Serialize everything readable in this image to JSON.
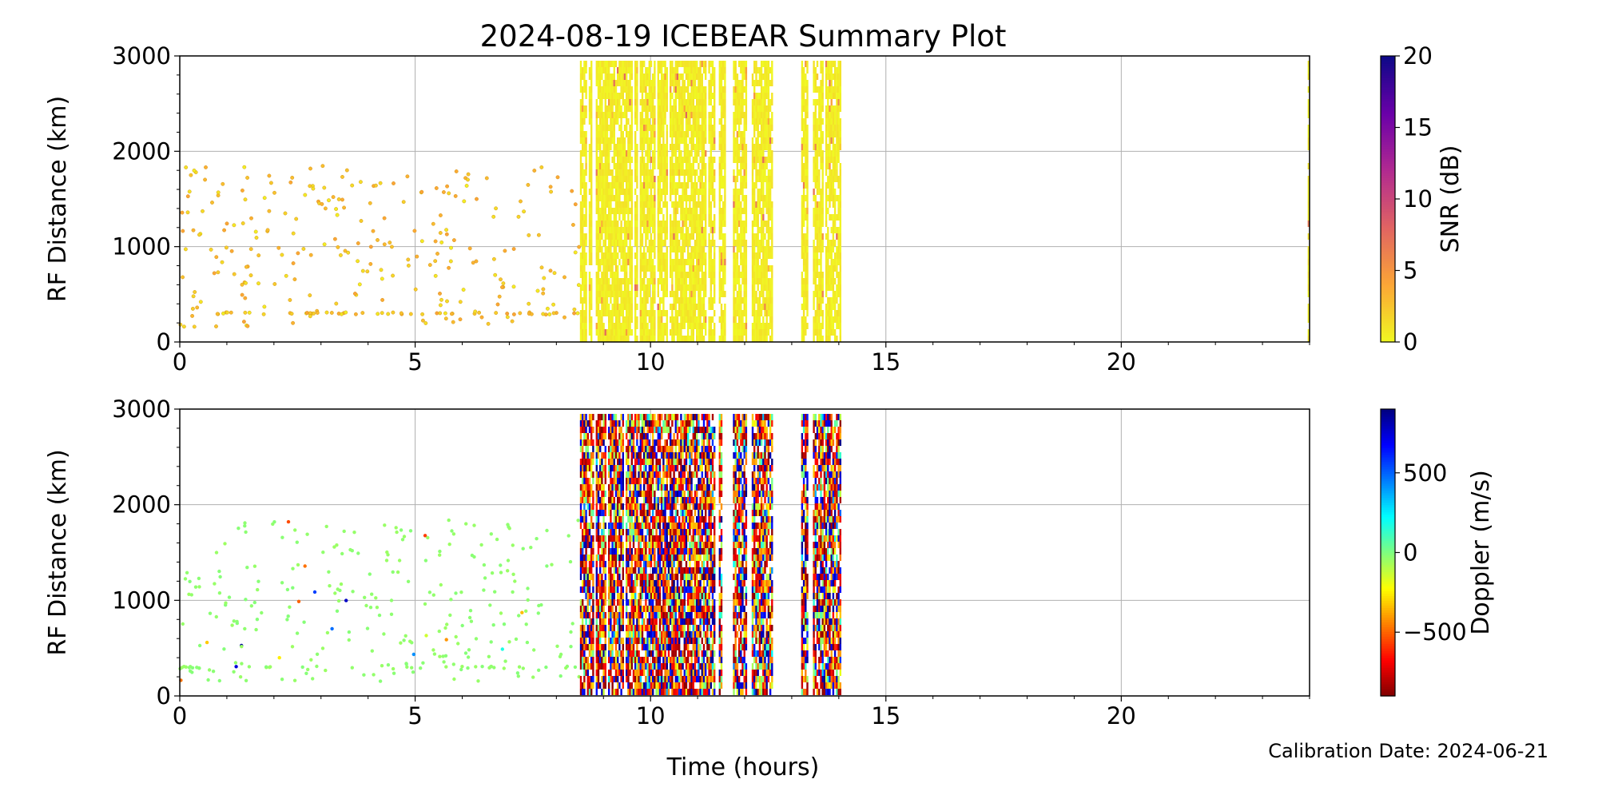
{
  "figure": {
    "title": "2024-08-19 ICEBEAR Summary Plot",
    "xlabel": "Time (hours)",
    "calibration": "Calibration Date: 2024-06-21"
  },
  "chart_data": [
    {
      "type": "scatter",
      "ylabel": "RF Distance (km)",
      "xlim": [
        0,
        24
      ],
      "ylim": [
        0,
        3000
      ],
      "x_ticks": [
        0,
        5,
        10,
        15,
        20
      ],
      "y_ticks": [
        0,
        1000,
        2000,
        3000
      ],
      "grid": true,
      "color_by": "SNR",
      "colorbar": {
        "label": "SNR (dB)",
        "range": [
          0,
          20
        ],
        "ticks": [
          0,
          5,
          10,
          15,
          20
        ],
        "colormap": "plasma_r",
        "stops": [
          "#f0f921",
          "#fca636",
          "#e16462",
          "#b12a90",
          "#6a00a8",
          "#0d0887"
        ]
      },
      "series": [
        {
          "kind": "sparse_echoes",
          "x_range": [
            0,
            8.5
          ],
          "y_range": [
            0,
            1950
          ],
          "clustered_range_km": 300,
          "typical_value": 1.5
        },
        {
          "kind": "dense_bands",
          "bands": [
            [
              8.5,
              11.6
            ],
            [
              11.75,
              12.05
            ],
            [
              12.15,
              12.6
            ],
            [
              13.2,
              13.35
            ],
            [
              13.45,
              14.05
            ],
            [
              23.96,
              24.0
            ]
          ],
          "y_range": [
            0,
            2950
          ],
          "typical_value": 0.5
        }
      ]
    },
    {
      "type": "scatter",
      "ylabel": "RF Distance (km)",
      "xlim": [
        0,
        24
      ],
      "ylim": [
        0,
        3000
      ],
      "x_ticks": [
        0,
        5,
        10,
        15,
        20
      ],
      "y_ticks": [
        0,
        1000,
        2000,
        3000
      ],
      "grid": true,
      "color_by": "Doppler",
      "colorbar": {
        "label": "Doppler (m/s)",
        "range": [
          -900,
          900
        ],
        "ticks": [
          -500,
          0,
          500
        ],
        "tick_labels": [
          "−500",
          "0",
          "500"
        ],
        "colormap": "jet_r",
        "stops": [
          "#7f0000",
          "#ff0000",
          "#ff7f00",
          "#ffff00",
          "#7fff7f",
          "#00ffff",
          "#007fff",
          "#0000ff",
          "#00007f"
        ]
      },
      "series": [
        {
          "kind": "sparse_echoes",
          "x_range": [
            0,
            8.5
          ],
          "y_range": [
            0,
            1950
          ],
          "clustered_range_km": 300,
          "typical_value": -30
        },
        {
          "kind": "dense_bands",
          "bands": [
            [
              8.5,
              11.6
            ],
            [
              11.75,
              12.05
            ],
            [
              12.15,
              12.6
            ],
            [
              13.2,
              13.35
            ],
            [
              13.45,
              14.05
            ],
            [
              23.96,
              24.0
            ]
          ],
          "y_range": [
            0,
            2950
          ],
          "value_range": [
            -900,
            900
          ]
        }
      ]
    }
  ]
}
